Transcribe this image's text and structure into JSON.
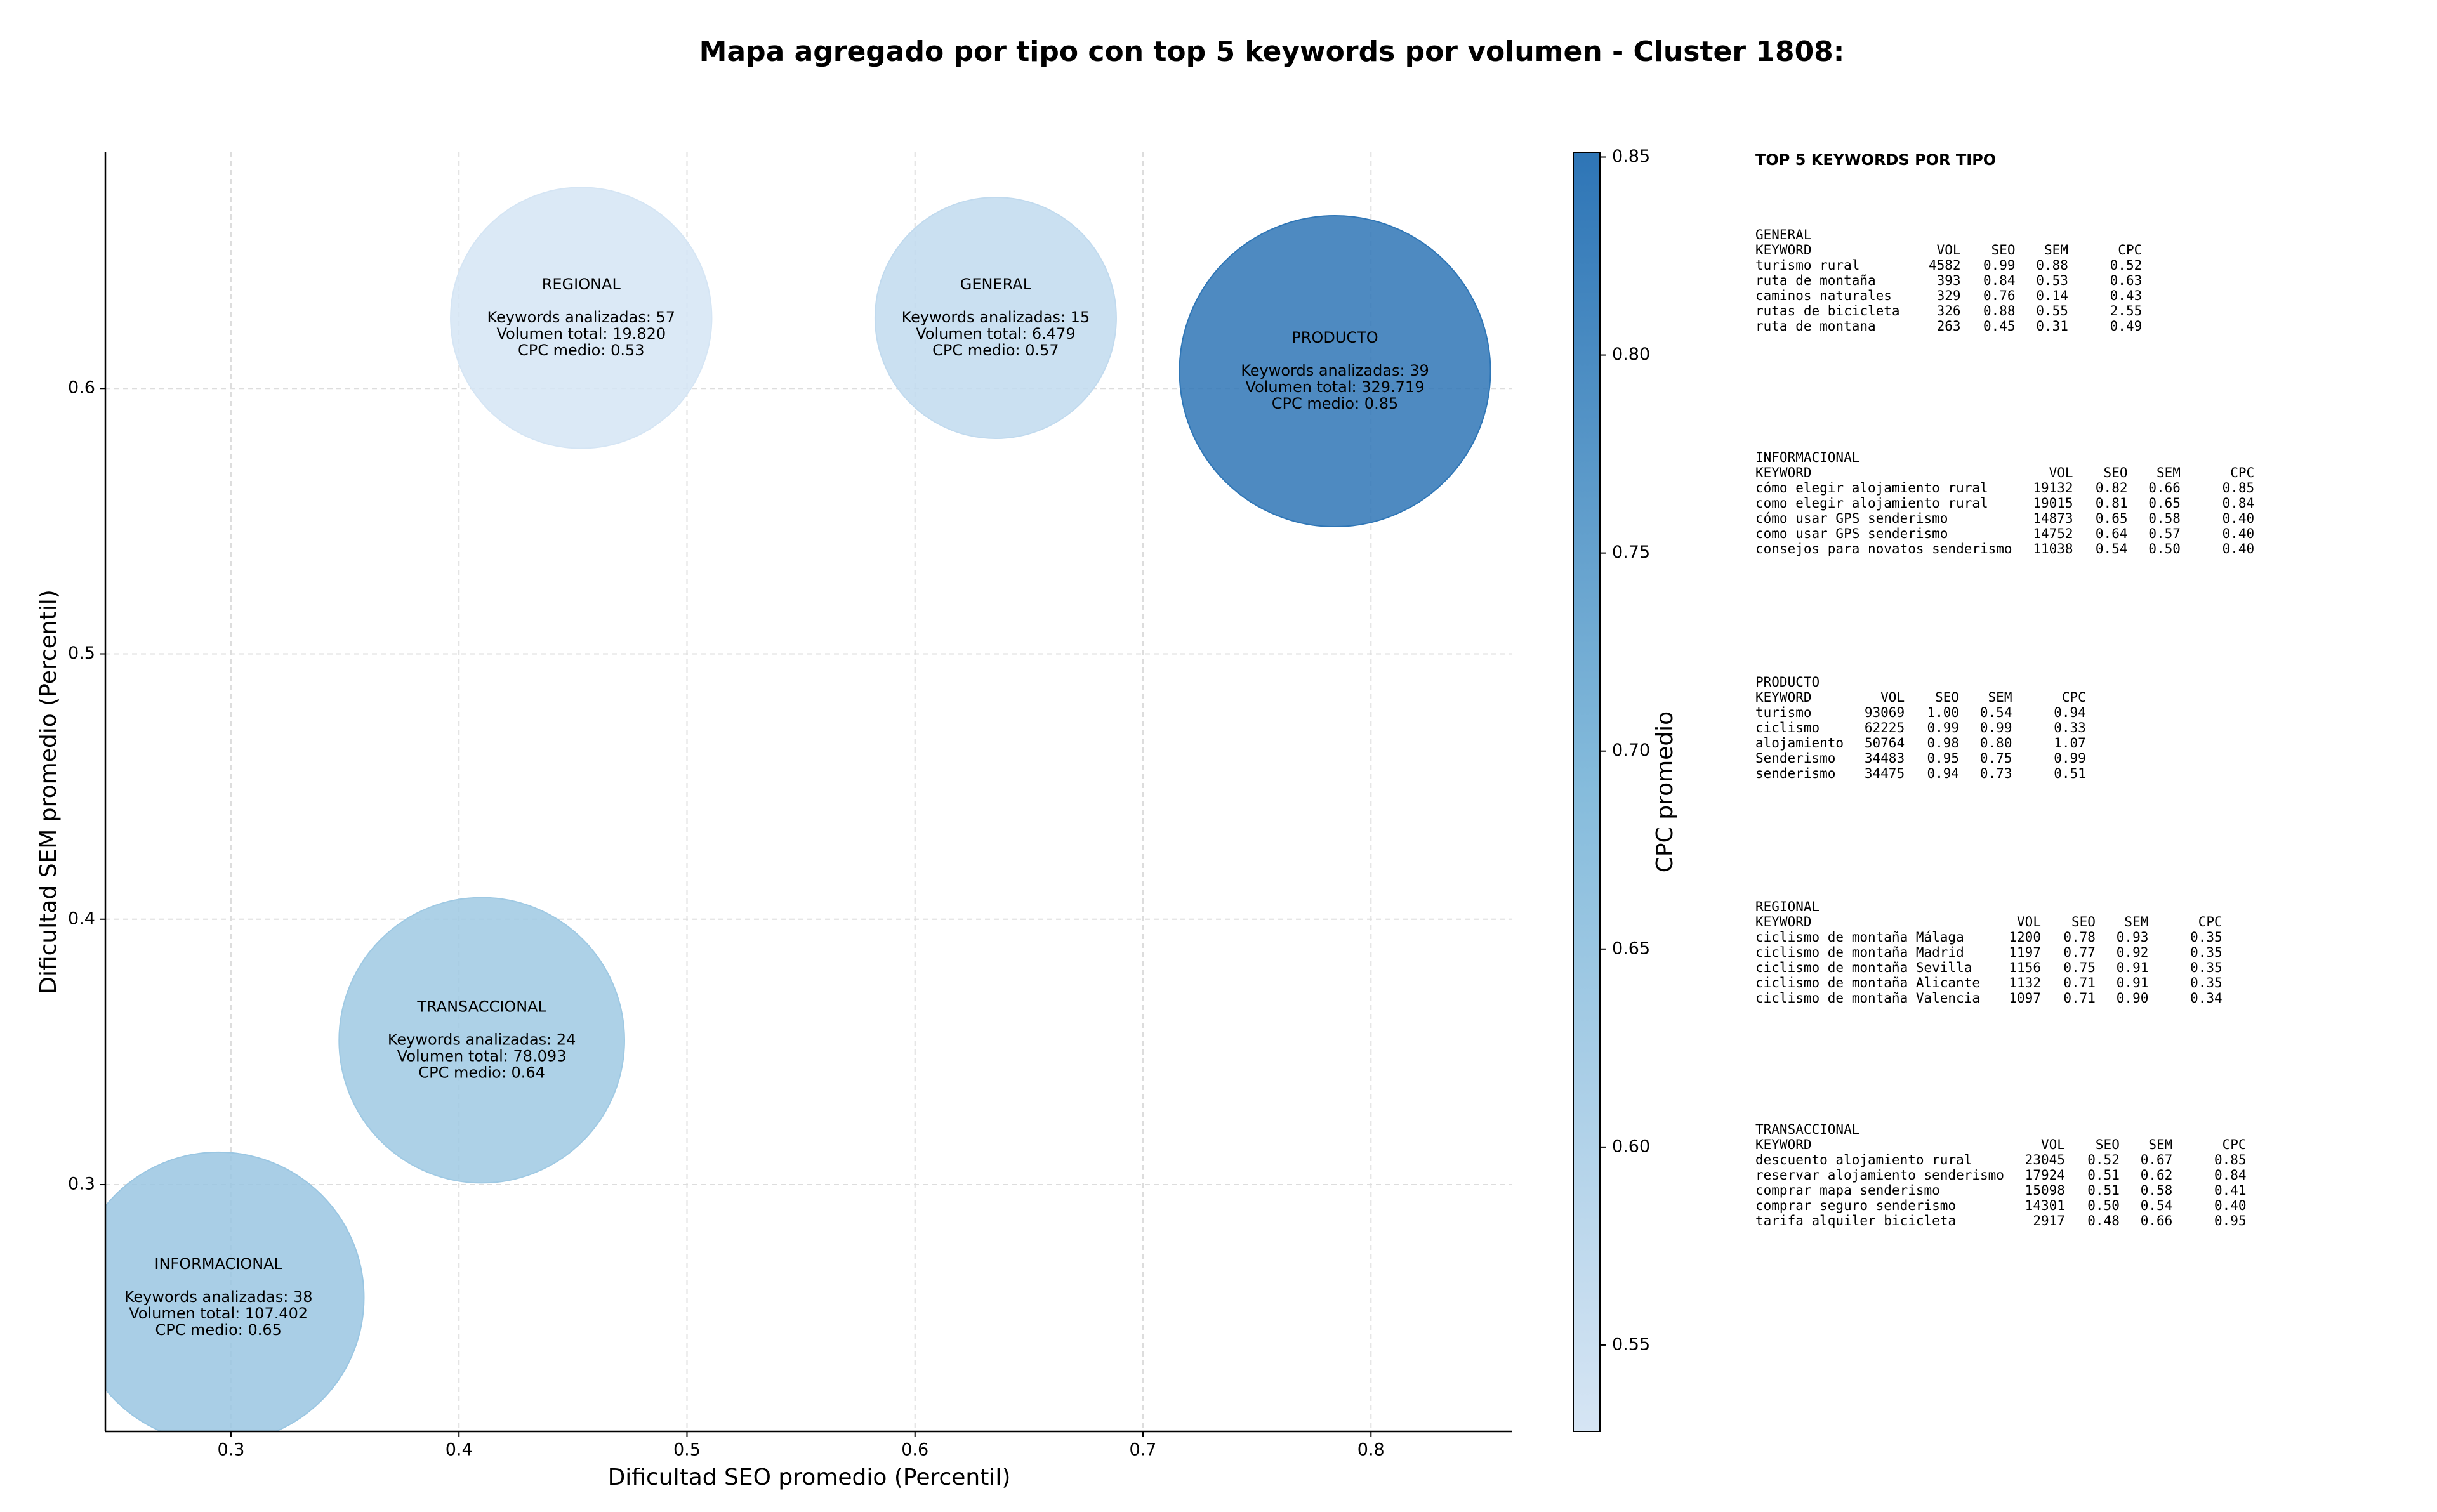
{
  "chart_data": {
    "type": "scatter",
    "title": "Mapa agregado por tipo con top 5 keywords por volumen - Cluster 1808:",
    "xlabel": "Dificultad SEO promedio (Percentil)",
    "ylabel": "Dificultad SEM promedio (Percentil)",
    "xlim": [
      0.2449,
      0.862
    ],
    "ylim": [
      0.207,
      0.689
    ],
    "xticks": [
      0.3,
      0.4,
      0.5,
      0.6,
      0.7,
      0.8
    ],
    "yticks": [
      0.3,
      0.4,
      0.5,
      0.6
    ],
    "grid": true,
    "categories": [
      "REGIONAL",
      "GENERAL",
      "PRODUCTO",
      "TRANSACCIONAL",
      "INFORMACIONAL"
    ],
    "x": [
      0.4536,
      0.6354,
      0.7842,
      0.41,
      0.2945
    ],
    "values": [
      0.6266,
      0.6266,
      0.6065,
      0.3544,
      0.2574
    ],
    "sizes": [
      19820,
      6479,
      329719,
      78093,
      107402
    ],
    "size_labels": [
      "Volumen total: 19.820",
      "Volumen total: 6.479",
      "Volumen total: 329.719",
      "Volumen total: 78.093",
      "Volumen total: 107.402"
    ],
    "keywords": [
      57,
      15,
      39,
      24,
      38
    ],
    "keywords_labels": [
      "Keywords analizadas: 57",
      "Keywords analizadas: 15",
      "Keywords analizadas: 39",
      "Keywords analizadas: 24",
      "Keywords analizadas: 38"
    ],
    "cpc": [
      0.53,
      0.57,
      0.85,
      0.64,
      0.65
    ],
    "cpc_labels": [
      "CPC medio: 0.53",
      "CPC medio: 0.57",
      "CPC medio: 0.85",
      "CPC medio: 0.64",
      "CPC medio: 0.65"
    ],
    "colorbar": {
      "label": "CPC promedio",
      "lim": [
        0.5282,
        0.8512
      ],
      "ticks": [
        0.55,
        {
          "value": 0.6,
          "label": "0.60"
        },
        0.65,
        {
          "value": 0.7,
          "label": "0.70"
        },
        0.75,
        {
          "value": 0.8,
          "label": "0.80"
        },
        0.85
      ],
      "colors": [
        "#d6e5f4",
        "#86bcdc",
        "#2e75b6"
      ]
    }
  },
  "side_panel": {
    "title": "TOP 5 KEYWORDS POR TIPO",
    "groups": [
      {
        "name": "GENERAL",
        "header": [
          "KEYWORD",
          "VOL",
          "SEO",
          "SEM",
          "CPC"
        ],
        "rows": [
          [
            "turismo rural",
            "4582",
            "0.99",
            "0.88",
            "0.52"
          ],
          [
            "ruta de montaña",
            "393",
            "0.84",
            "0.53",
            "0.63"
          ],
          [
            "caminos naturales",
            "329",
            "0.76",
            "0.14",
            "0.43"
          ],
          [
            "rutas de bicicleta",
            "326",
            "0.88",
            "0.55",
            "2.55"
          ],
          [
            "ruta de montana",
            "263",
            "0.45",
            "0.31",
            "0.49"
          ]
        ]
      },
      {
        "name": "INFORMACIONAL",
        "header": [
          "KEYWORD",
          "VOL",
          "SEO",
          "SEM",
          "CPC"
        ],
        "rows": [
          [
            "cómo elegir alojamiento rural",
            "19132",
            "0.82",
            "0.66",
            "0.85"
          ],
          [
            "como elegir alojamiento rural",
            "19015",
            "0.81",
            "0.65",
            "0.84"
          ],
          [
            "cómo usar GPS senderismo",
            "14873",
            "0.65",
            "0.58",
            "0.40"
          ],
          [
            "como usar GPS senderismo",
            "14752",
            "0.64",
            "0.57",
            "0.40"
          ],
          [
            "consejos para novatos senderismo",
            "11038",
            "0.54",
            "0.50",
            "0.40"
          ]
        ]
      },
      {
        "name": "PRODUCTO",
        "header": [
          "KEYWORD",
          "VOL",
          "SEO",
          "SEM",
          "CPC"
        ],
        "rows": [
          [
            "turismo",
            "93069",
            "1.00",
            "0.54",
            "0.94"
          ],
          [
            "ciclismo",
            "62225",
            "0.99",
            "0.99",
            "0.33"
          ],
          [
            "alojamiento",
            "50764",
            "0.98",
            "0.80",
            "1.07"
          ],
          [
            "Senderismo",
            "34483",
            "0.95",
            "0.75",
            "0.99"
          ],
          [
            "senderismo",
            "34475",
            "0.94",
            "0.73",
            "0.51"
          ]
        ]
      },
      {
        "name": "REGIONAL",
        "header": [
          "KEYWORD",
          "VOL",
          "SEO",
          "SEM",
          "CPC"
        ],
        "rows": [
          [
            "ciclismo de montaña Málaga",
            "1200",
            "0.78",
            "0.93",
            "0.35"
          ],
          [
            "ciclismo de montaña Madrid",
            "1197",
            "0.77",
            "0.92",
            "0.35"
          ],
          [
            "ciclismo de montaña Sevilla",
            "1156",
            "0.75",
            "0.91",
            "0.35"
          ],
          [
            "ciclismo de montaña Alicante",
            "1132",
            "0.71",
            "0.91",
            "0.35"
          ],
          [
            "ciclismo de montaña Valencia",
            "1097",
            "0.71",
            "0.90",
            "0.34"
          ]
        ]
      },
      {
        "name": "TRANSACCIONAL",
        "header": [
          "KEYWORD",
          "VOL",
          "SEO",
          "SEM",
          "CPC"
        ],
        "rows": [
          [
            "descuento alojamiento rural",
            "23045",
            "0.52",
            "0.67",
            "0.85"
          ],
          [
            "reservar alojamiento senderismo",
            "17924",
            "0.51",
            "0.62",
            "0.84"
          ],
          [
            "comprar mapa senderismo",
            "15098",
            "0.51",
            "0.58",
            "0.41"
          ],
          [
            "comprar seguro senderismo",
            "14301",
            "0.50",
            "0.54",
            "0.40"
          ],
          [
            "tarifa alquiler bicicleta",
            "2917",
            "0.48",
            "0.66",
            "0.95"
          ]
        ]
      }
    ]
  }
}
